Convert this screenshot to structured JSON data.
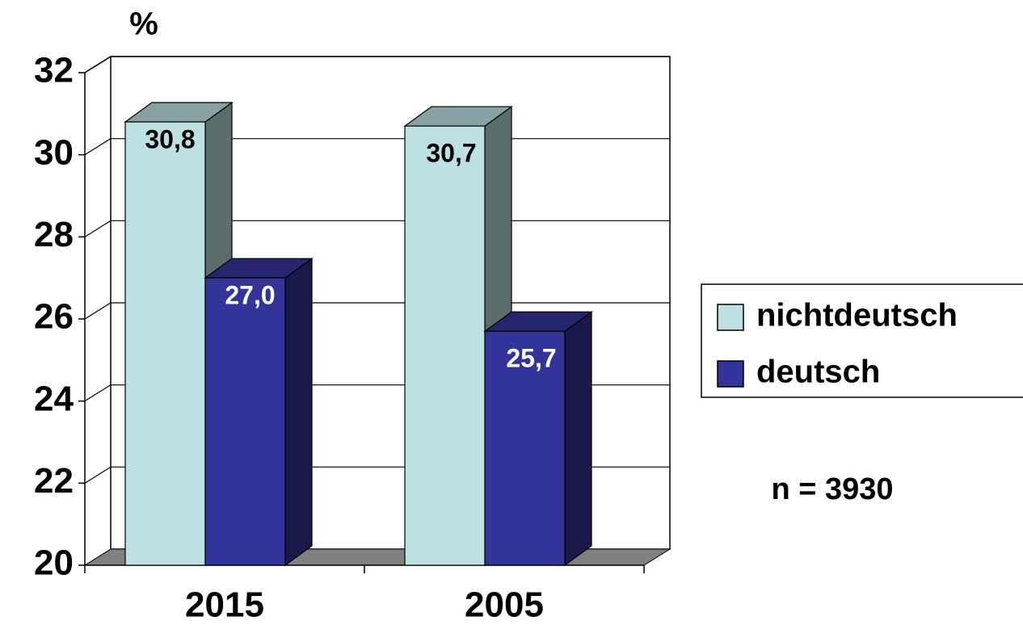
{
  "chart_data": {
    "type": "bar3d",
    "y_label": "%",
    "categories": [
      "2015",
      "2005"
    ],
    "series": [
      {
        "name": "nichtdeutsch",
        "color": "#bde0e3",
        "values": [
          30.8,
          30.7
        ],
        "value_labels": [
          "30,8",
          "30,7"
        ],
        "label_color": "#000000"
      },
      {
        "name": "deutsch",
        "color": "#333399",
        "values": [
          27.0,
          25.7
        ],
        "value_labels": [
          "27,0",
          "25,7"
        ],
        "label_color": "#ffffff"
      }
    ],
    "ylim": [
      20,
      32
    ],
    "yticks": [
      20,
      22,
      24,
      26,
      28,
      30,
      32
    ],
    "grid": true,
    "annotation": "n = 3930"
  }
}
